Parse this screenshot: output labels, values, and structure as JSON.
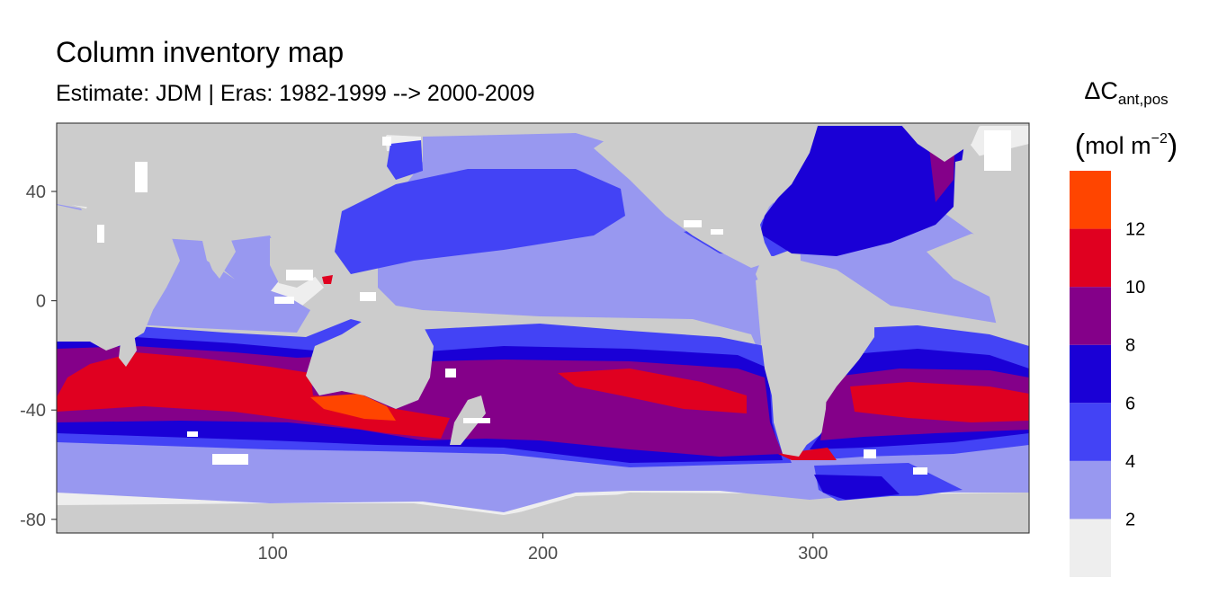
{
  "title": "Column inventory map",
  "subtitle": {
    "estimate": "Estimate: JDM",
    "separator": " | ",
    "eras": "Eras: 1982-1999 --> 2000-2009"
  },
  "legend": {
    "symbol": "ΔC",
    "subscript": "ant,pos",
    "unit_open": "(",
    "unit_text": "mol m",
    "unit_exp": "−2",
    "unit_close": ")",
    "breaks": [
      2,
      4,
      6,
      8,
      10,
      12
    ],
    "bins": [
      {
        "range": [
          0,
          2
        ],
        "color": "#eeeeee"
      },
      {
        "range": [
          2,
          4
        ],
        "color": "#9898f0"
      },
      {
        "range": [
          4,
          6
        ],
        "color": "#4343f5"
      },
      {
        "range": [
          6,
          8
        ],
        "color": "#1a00d6"
      },
      {
        "range": [
          8,
          10
        ],
        "color": "#840089"
      },
      {
        "range": [
          10,
          12
        ],
        "color": "#e00020"
      },
      {
        "range": [
          12,
          14
        ],
        "color": "#ff4500"
      }
    ]
  },
  "map": {
    "x_range": [
      20,
      380
    ],
    "y_range": [
      -85,
      65
    ],
    "x_ticks": [
      100,
      200,
      300
    ],
    "y_ticks": [
      40,
      0,
      -40,
      -80
    ],
    "land_color": "#cccccc",
    "frame_color": "#333333"
  }
}
